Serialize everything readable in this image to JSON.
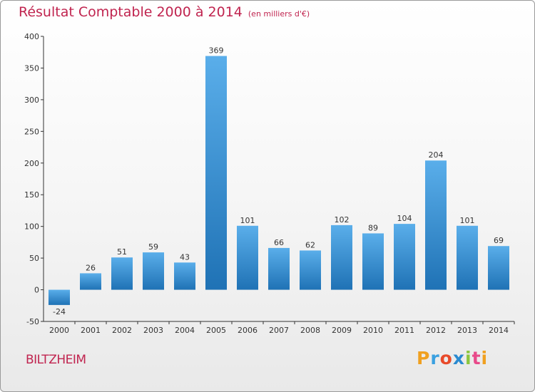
{
  "title": {
    "main": "Résultat Comptable 2000 à 2014",
    "unit": "(en milliers d'€)"
  },
  "commune": "BILTZHEIM",
  "logo": {
    "letters": [
      "P",
      "r",
      "o",
      "x",
      "i",
      "t",
      "i"
    ],
    "colors": [
      "#f0a020",
      "#3aa0e0",
      "#e84a2a",
      "#2a8ad0",
      "#8cc63f",
      "#e84a8a",
      "#f0a020"
    ]
  },
  "colors": {
    "bar_top": "#5aaeea",
    "bar_bottom": "#1f72b5",
    "title": "#c0244f"
  },
  "chart_data": {
    "type": "bar",
    "title": "Résultat Comptable 2000 à 2014",
    "subtitle": "(en milliers d'€)",
    "xlabel": "",
    "ylabel": "",
    "categories": [
      "2000",
      "2001",
      "2002",
      "2003",
      "2004",
      "2005",
      "2006",
      "2007",
      "2008",
      "2009",
      "2010",
      "2011",
      "2012",
      "2013",
      "2014"
    ],
    "values": [
      -24,
      26,
      51,
      59,
      43,
      369,
      101,
      66,
      62,
      102,
      89,
      104,
      204,
      101,
      69
    ],
    "ylim": [
      -50,
      400
    ],
    "yticks": [
      -50,
      0,
      50,
      100,
      150,
      200,
      250,
      300,
      350,
      400
    ],
    "grid": false
  }
}
